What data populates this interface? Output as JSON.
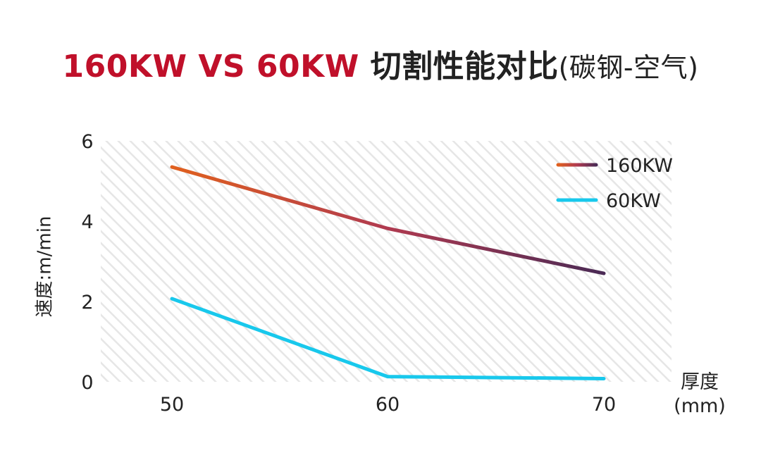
{
  "title": {
    "highlight": "160KW VS 60KW",
    "main": " 切割性能对比",
    "sub": "(碳钢-空气)"
  },
  "chart_data": {
    "type": "line",
    "title": "160KW VS 60KW 切割性能对比(碳钢-空气)",
    "x": [
      50,
      60,
      70
    ],
    "x_tick_labels": [
      "50",
      "60",
      "70"
    ],
    "y_ticks": [
      0,
      2,
      4,
      6
    ],
    "y_tick_labels": [
      "0",
      "2",
      "4",
      "6"
    ],
    "ylim": [
      0,
      6
    ],
    "xlabel": [
      "厚度",
      "(mm)"
    ],
    "ylabel": "速度:m/min",
    "legend_position": "top-right",
    "background": "diagonal hatching",
    "series": [
      {
        "name": "160KW",
        "values": [
          5.35,
          3.82,
          2.7
        ],
        "color_start": "#e0601e",
        "color_end": "#4a2a55"
      },
      {
        "name": "60KW",
        "values": [
          2.07,
          0.13,
          0.08
        ],
        "color": "#18c8ec"
      }
    ]
  }
}
